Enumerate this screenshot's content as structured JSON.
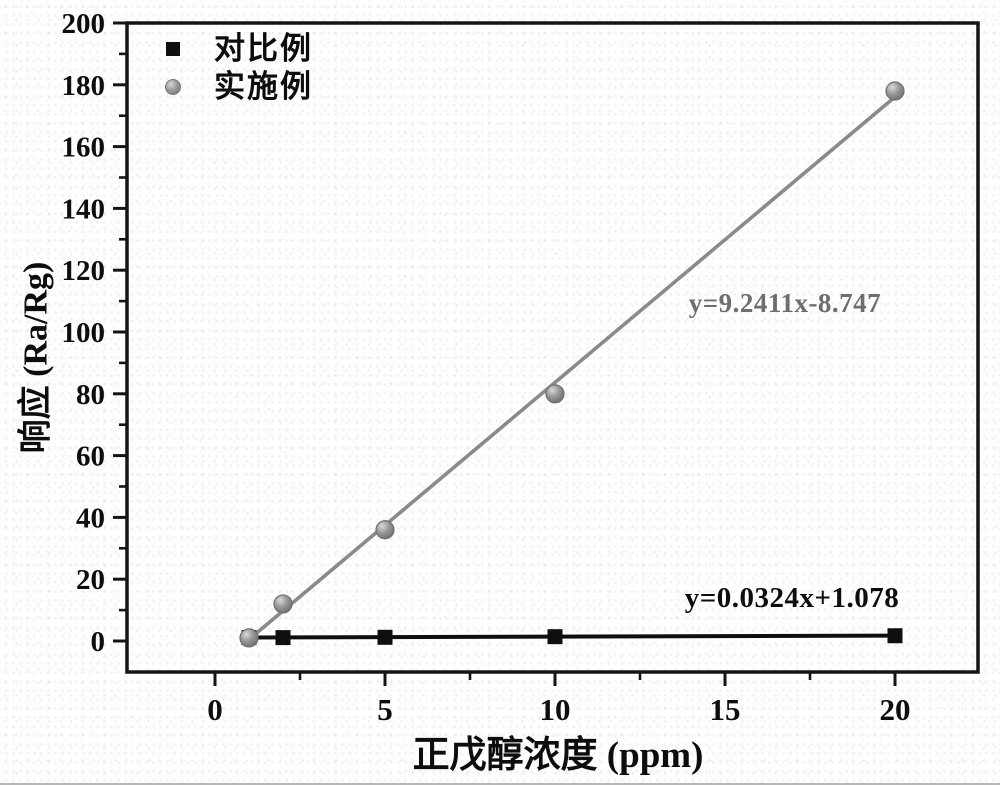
{
  "axes": {
    "x_title": "正戊醇浓度 (ppm)",
    "y_title": "响应 (Ra/Rg)"
  },
  "legend": {
    "items": [
      {
        "label": "对比例",
        "marker": "square"
      },
      {
        "label": "实施例",
        "marker": "sphere"
      }
    ]
  },
  "annotations": {
    "fit_example": "y=9.2411x-8.747",
    "fit_comparative": "y=0.0324x+1.078"
  },
  "chart_data": {
    "type": "scatter",
    "x": [
      1,
      2,
      5,
      10,
      20
    ],
    "series": [
      {
        "name": "对比例",
        "marker": "square",
        "color": "#0f0f0f",
        "values": [
          1.1,
          1.1,
          1.2,
          1.4,
          1.7
        ],
        "fit_equation": "y=0.0324x+1.078",
        "fit_slope": 0.0324,
        "fit_intercept": 1.078
      },
      {
        "name": "实施例",
        "marker": "sphere",
        "color": "#8a8a8a",
        "values": [
          1,
          12,
          36,
          80,
          178
        ],
        "fit_equation": "y=9.2411x-8.747",
        "fit_slope": 9.2411,
        "fit_intercept": -8.747
      }
    ],
    "title": "",
    "xlabel": "正戊醇浓度 (ppm)",
    "ylabel": "响应 (Ra/Rg)",
    "x_ticks": [
      0,
      5,
      10,
      15,
      20
    ],
    "x_minor_ticks": [
      2.5,
      7.5,
      12.5,
      17.5
    ],
    "y_ticks": [
      0,
      20,
      40,
      60,
      80,
      100,
      120,
      140,
      160,
      180,
      200
    ],
    "y_minor_step": 10,
    "xlim": [
      -2.6,
      22.45
    ],
    "ylim": [
      -10,
      200
    ],
    "grid": false,
    "legend_position": "top-left"
  },
  "colors": {
    "frame": "#151515",
    "black_series": "#0f0f0f",
    "gray_series": "#8a8a8a",
    "gray_text": "#6e6e6e",
    "background": "#fefefe"
  }
}
